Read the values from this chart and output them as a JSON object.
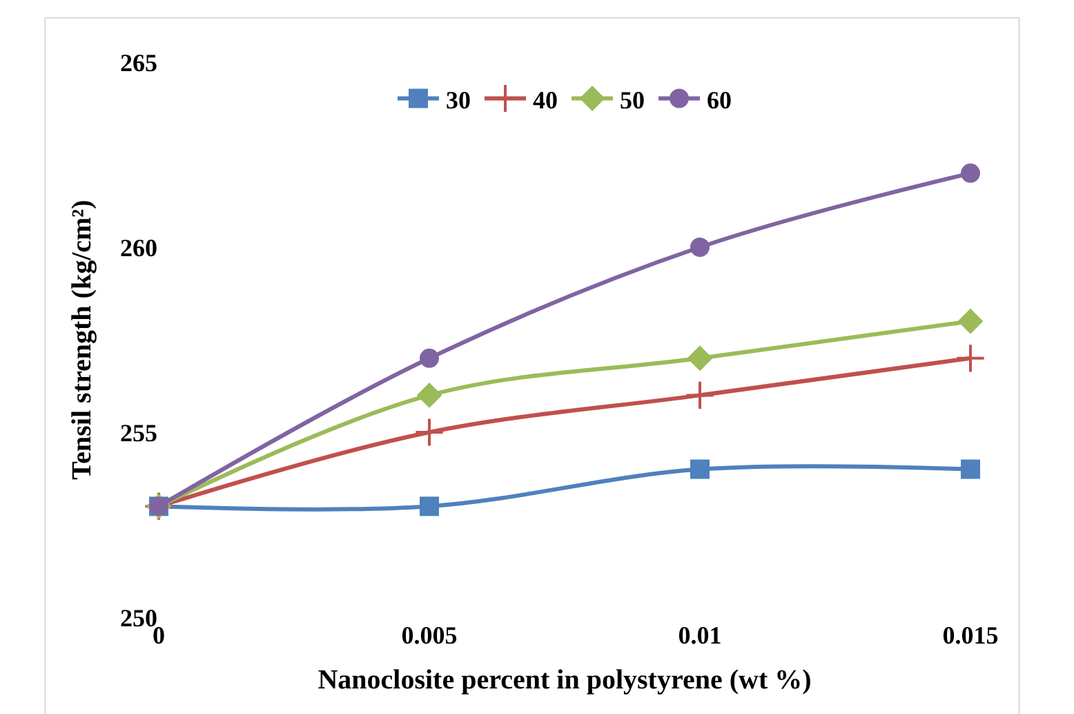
{
  "chart_data": {
    "type": "line",
    "xlabel": "Nanoclosite percent in polystyrene (wt %)",
    "ylabel": "Tensil strength (kg/cm²)",
    "x": [
      0,
      0.005,
      0.01,
      0.015
    ],
    "xlim": [
      0,
      0.015
    ],
    "xticks": [
      0,
      0.005,
      0.01,
      0.015
    ],
    "ylim": [
      250,
      265
    ],
    "yticks": [
      250,
      255,
      260,
      265
    ],
    "legend": "top",
    "series": [
      {
        "name": "30",
        "color": "#4f81bd",
        "marker": "square",
        "values": [
          253,
          253,
          254,
          254
        ]
      },
      {
        "name": "40",
        "color": "#c0504d",
        "marker": "cross",
        "values": [
          253,
          255,
          256,
          257
        ]
      },
      {
        "name": "50",
        "color": "#9bbb59",
        "marker": "diamond",
        "values": [
          253,
          256,
          257,
          258
        ]
      },
      {
        "name": "60",
        "color": "#8064a2",
        "marker": "circle",
        "values": [
          253,
          257,
          260,
          262
        ]
      }
    ]
  }
}
